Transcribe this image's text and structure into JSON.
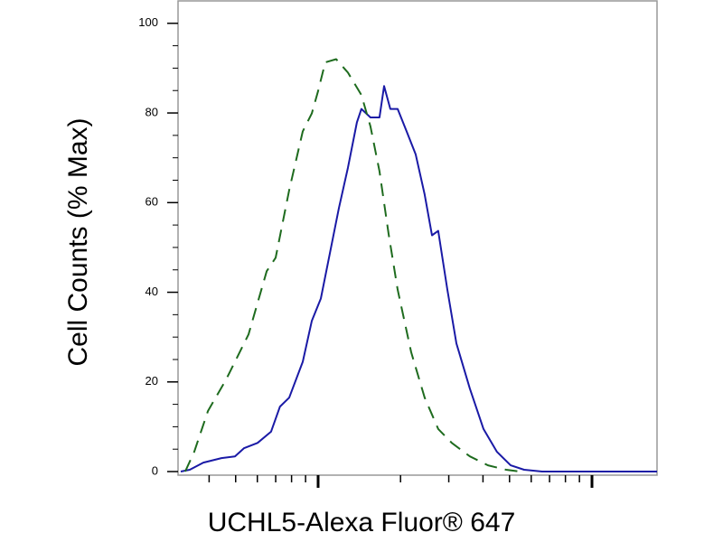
{
  "chart_data": {
    "type": "line",
    "x_label": "UCHL5-Alexa Fluor® 647",
    "y_label": "Cell Counts (% Max)",
    "xscale": "log",
    "xlim": [
      30.8,
      1728
    ],
    "xticks": [
      100,
      1000
    ],
    "ylim": [
      -0.8,
      105
    ],
    "yticks": [
      0,
      20,
      40,
      60,
      80,
      100
    ],
    "series": [
      {
        "color": "#1a1aa6",
        "style": "solid",
        "x": [
          31.5,
          34.0,
          38.1,
          44.4,
          49.7,
          53.6,
          60.1,
          67.3,
          72.6,
          78.4,
          87.9,
          94.8,
          102.3,
          110.4,
          119.1,
          128.5,
          138.6,
          143.9,
          155.3,
          167.6,
          174.2,
          183.6,
          195.2,
          210.4,
          227.1,
          245.0,
          260.6,
          274.6,
          296.5,
          319.9,
          358.1,
          401.8,
          449.8,
          504.7,
          565,
          658,
          962,
          1728
        ],
        "values": [
          0,
          0.4,
          2,
          3,
          3.4,
          5.2,
          6.4,
          8.9,
          14.5,
          16.5,
          24.5,
          33.6,
          38.6,
          48.7,
          58.8,
          67.8,
          77.9,
          80.9,
          79,
          79,
          86,
          80.9,
          80.9,
          75.9,
          70.8,
          61.8,
          52.7,
          53.7,
          40.6,
          28.6,
          18.5,
          9.5,
          4.4,
          1.4,
          0.4,
          0,
          0,
          0
        ]
      },
      {
        "color": "#1e6b1e",
        "style": "dashed",
        "x": [
          32.7,
          35.3,
          39.6,
          46.1,
          55.7,
          64.9,
          70.0,
          78.4,
          87.9,
          94.8,
          100,
          106.2,
          116.4,
          128.5,
          143.9,
          155.3,
          167.6,
          180.9,
          195.2,
          218.8,
          245.0,
          274.6,
          307.6,
          358.1,
          417.0,
          485.6,
          544.5
        ],
        "values": [
          0,
          4.4,
          13.5,
          20.5,
          30.6,
          44.7,
          47.7,
          62.8,
          75.9,
          79.9,
          84.9,
          91.3,
          92,
          89,
          84,
          77,
          67,
          53,
          40.6,
          26.6,
          16.5,
          9.5,
          6.4,
          3.4,
          1.4,
          0.4,
          0
        ]
      }
    ]
  }
}
